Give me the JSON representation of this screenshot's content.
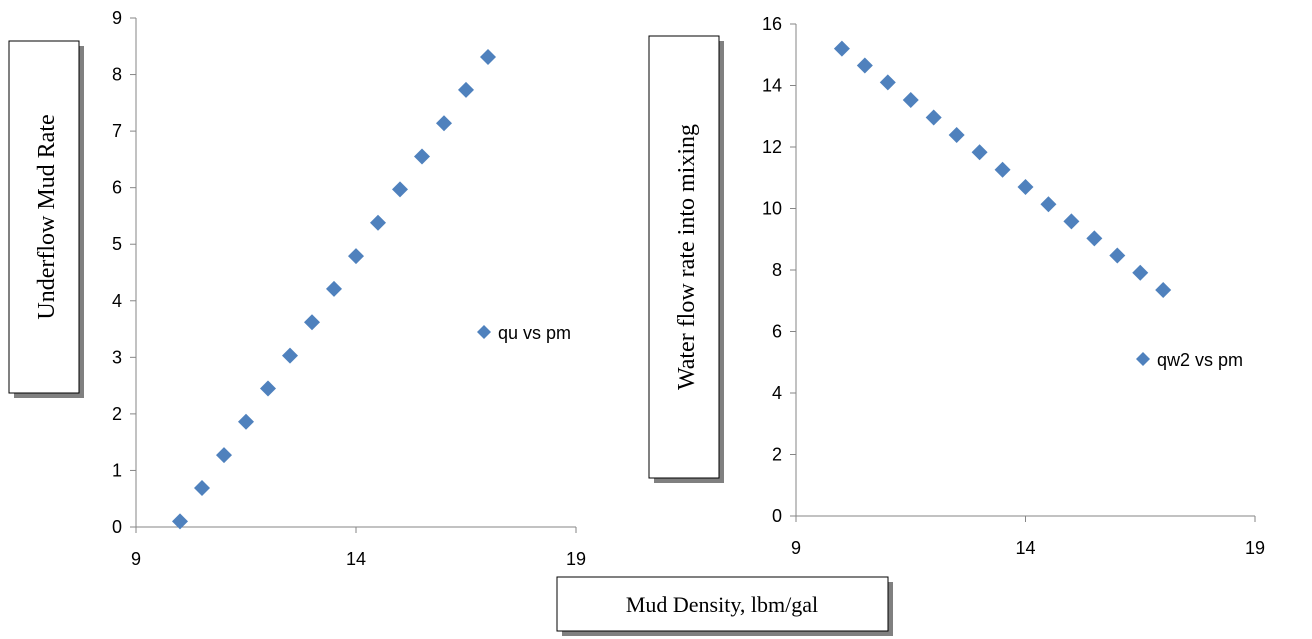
{
  "x_axis_label": "Mud Density, lbm/gal",
  "chart_data": [
    {
      "type": "scatter",
      "ylabel": "Underflow  Mud Rate",
      "xlim": [
        9,
        19
      ],
      "ylim": [
        0,
        9
      ],
      "x_ticks": [
        "9",
        "14",
        "19"
      ],
      "y_ticks": [
        "0",
        "1",
        "2",
        "3",
        "4",
        "5",
        "6",
        "7",
        "8",
        "9"
      ],
      "series": [
        {
          "name": "qu vs pm",
          "color": "#4f81bd",
          "marker": "diamond",
          "points": [
            {
              "x": 10.0,
              "y": 0.1
            },
            {
              "x": 10.5,
              "y": 0.69
            },
            {
              "x": 11.0,
              "y": 1.27
            },
            {
              "x": 11.5,
              "y": 1.86
            },
            {
              "x": 12.0,
              "y": 2.45
            },
            {
              "x": 12.5,
              "y": 3.03
            },
            {
              "x": 13.0,
              "y": 3.62
            },
            {
              "x": 13.5,
              "y": 4.21
            },
            {
              "x": 14.0,
              "y": 4.79
            },
            {
              "x": 14.5,
              "y": 5.38
            },
            {
              "x": 15.0,
              "y": 5.97
            },
            {
              "x": 15.5,
              "y": 6.55
            },
            {
              "x": 16.0,
              "y": 7.14
            },
            {
              "x": 16.5,
              "y": 7.73
            },
            {
              "x": 17.0,
              "y": 8.31
            }
          ]
        }
      ]
    },
    {
      "type": "scatter",
      "ylabel": "Water flow rate  into mixing",
      "xlim": [
        9,
        19
      ],
      "ylim": [
        0,
        16
      ],
      "x_ticks": [
        "9",
        "14",
        "19"
      ],
      "y_ticks": [
        "0",
        "2",
        "4",
        "6",
        "8",
        "10",
        "12",
        "14",
        "16"
      ],
      "series": [
        {
          "name": "qw2 vs pm",
          "color": "#4f81bd",
          "marker": "diamond",
          "points": [
            {
              "x": 10.0,
              "y": 15.2
            },
            {
              "x": 10.5,
              "y": 14.65
            },
            {
              "x": 11.0,
              "y": 14.1
            },
            {
              "x": 11.5,
              "y": 13.53
            },
            {
              "x": 12.0,
              "y": 12.96
            },
            {
              "x": 12.5,
              "y": 12.39
            },
            {
              "x": 13.0,
              "y": 11.83
            },
            {
              "x": 13.5,
              "y": 11.26
            },
            {
              "x": 14.0,
              "y": 10.7
            },
            {
              "x": 14.5,
              "y": 10.14
            },
            {
              "x": 15.0,
              "y": 9.58
            },
            {
              "x": 15.5,
              "y": 9.03
            },
            {
              "x": 16.0,
              "y": 8.47
            },
            {
              "x": 16.5,
              "y": 7.91
            },
            {
              "x": 17.0,
              "y": 7.35
            }
          ]
        }
      ]
    }
  ]
}
